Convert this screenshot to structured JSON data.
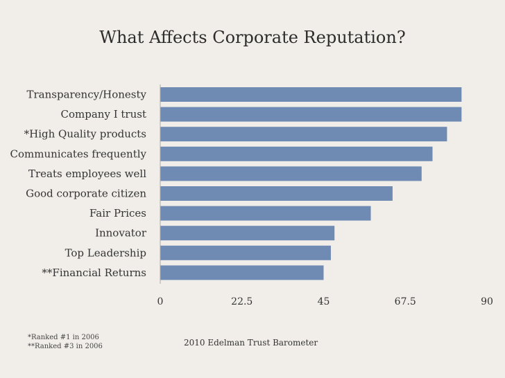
{
  "slide": {
    "title": "What Affects Corporate Reputation?",
    "footnote_1": "*Ranked #1 in 2006",
    "footnote_2": "**Ranked #3 in 2006",
    "source": "2010 Edelman Trust Barometer"
  },
  "colors": {
    "bar": "#6f8bb3",
    "axis": "#aaaaaa",
    "text": "#333333"
  },
  "chart_data": {
    "type": "bar",
    "orientation": "horizontal",
    "title": "What Affects Corporate Reputation?",
    "categories": [
      "Transparency/Honesty",
      "Company I trust",
      "*High Quality products",
      "Communicates frequently",
      "Treats employees well",
      "Good corporate citizen",
      "Fair Prices",
      "Innovator",
      "Top Leadership",
      "**Financial Returns"
    ],
    "values": [
      83,
      83,
      79,
      75,
      72,
      64,
      58,
      48,
      47,
      45
    ],
    "xlim": [
      0,
      90
    ],
    "xticks": [
      "0",
      "22.5",
      "45",
      "67.5",
      "90"
    ],
    "xlabel": "",
    "ylabel": "",
    "grid": false,
    "source": "2010 Edelman Trust Barometer"
  }
}
